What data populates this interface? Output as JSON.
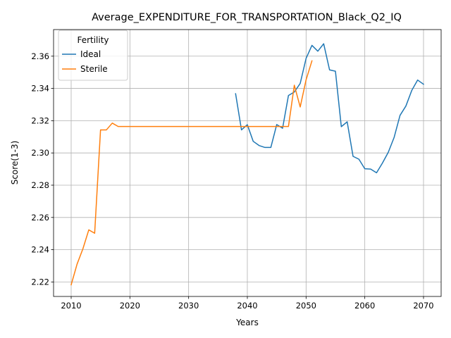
{
  "chart_data": {
    "type": "line",
    "title": "Average_EXPENDITURE_FOR_TRANSPORTATION_Black_Q2_IQ",
    "xlabel": "Years",
    "ylabel": "Score(1-3)",
    "xlim": [
      2007,
      2073
    ],
    "ylim": [
      2.211,
      2.3765
    ],
    "xticks": [
      2010,
      2020,
      2030,
      2040,
      2050,
      2060,
      2070
    ],
    "yticks": [
      2.22,
      2.24,
      2.26,
      2.28,
      2.3,
      2.32,
      2.34,
      2.36
    ],
    "ytick_labels": [
      "2.22",
      "2.24",
      "2.26",
      "2.28",
      "2.30",
      "2.32",
      "2.34",
      "2.36"
    ],
    "grid": true,
    "legend": {
      "title": "Fertility",
      "location": "upper-left"
    },
    "series": [
      {
        "name": "Ideal",
        "color": "#1f77b4",
        "x": [
          2038,
          2039,
          2040,
          2041,
          2042,
          2043,
          2044,
          2045,
          2046,
          2047,
          2048,
          2049,
          2050,
          2051,
          2052,
          2053,
          2054,
          2055,
          2056,
          2057,
          2058,
          2059,
          2060,
          2061,
          2062,
          2063,
          2064,
          2065,
          2066,
          2067,
          2068,
          2069,
          2070
        ],
        "y": [
          2.3367,
          2.3143,
          2.3175,
          2.3072,
          2.3046,
          2.3034,
          2.3034,
          2.3176,
          2.3153,
          2.3356,
          2.3378,
          2.3431,
          2.3586,
          2.3667,
          2.3631,
          2.3677,
          2.3515,
          2.3507,
          2.3163,
          2.3193,
          2.2979,
          2.2961,
          2.2902,
          2.29,
          2.2877,
          2.2937,
          2.3004,
          2.3097,
          2.3233,
          2.3291,
          2.3388,
          2.3452,
          2.3426
        ]
      },
      {
        "name": "Sterile",
        "color": "#ff7f0e",
        "x": [
          2010,
          2011,
          2012,
          2013,
          2014,
          2015,
          2016,
          2017,
          2018,
          2019,
          2020,
          2021,
          2022,
          2023,
          2024,
          2025,
          2026,
          2027,
          2028,
          2029,
          2030,
          2031,
          2032,
          2033,
          2034,
          2035,
          2036,
          2037,
          2038,
          2039,
          2040,
          2041,
          2042,
          2043,
          2044,
          2045,
          2046,
          2047,
          2048,
          2049,
          2050,
          2051
        ],
        "y": [
          2.2182,
          2.231,
          2.2406,
          2.2523,
          2.2502,
          2.3143,
          2.3143,
          2.3185,
          2.3164,
          2.3164,
          2.3164,
          2.3164,
          2.3164,
          2.3164,
          2.3164,
          2.3164,
          2.3164,
          2.3164,
          2.3164,
          2.3164,
          2.3164,
          2.3164,
          2.3164,
          2.3164,
          2.3164,
          2.3164,
          2.3164,
          2.3164,
          2.3164,
          2.3164,
          2.3164,
          2.3164,
          2.3164,
          2.3164,
          2.3164,
          2.3164,
          2.3164,
          2.3164,
          2.342,
          2.3285,
          2.3453,
          2.3571
        ]
      }
    ]
  }
}
